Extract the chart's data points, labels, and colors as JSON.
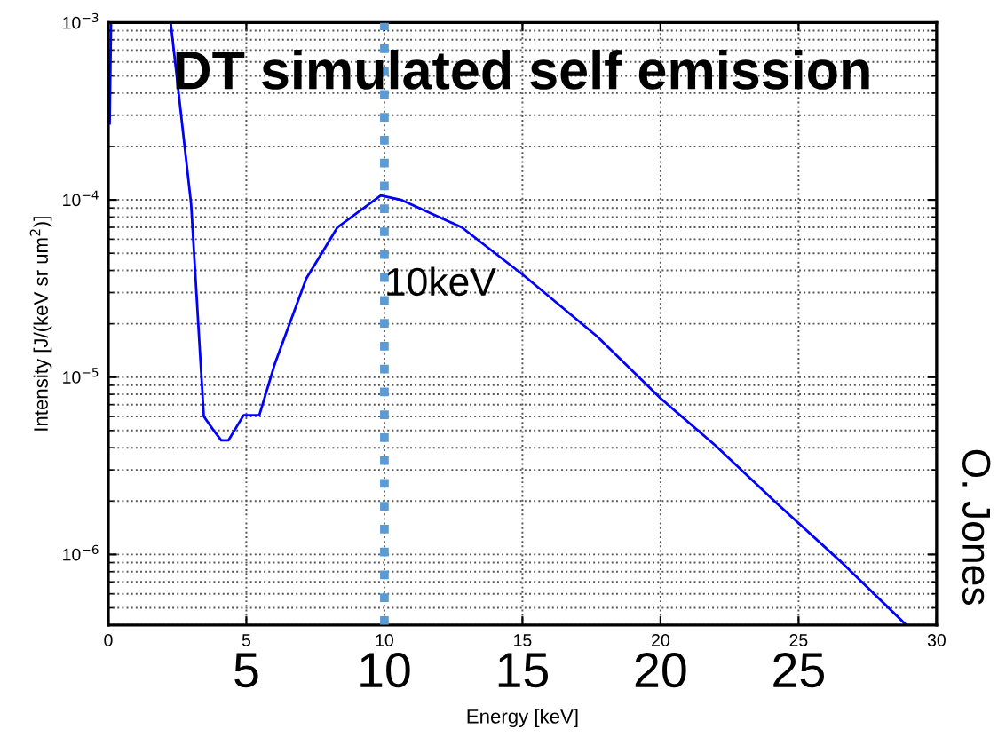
{
  "chart_data": {
    "type": "line",
    "title": "DT simulated self emission",
    "xlabel": "Energy [keV]",
    "ylabel": "Intensity [J/(keV sr um$^{2}$)]",
    "x": [
      0.05,
      0.1,
      1.0,
      2.26,
      3.0,
      3.46,
      3.78,
      4.09,
      4.35,
      4.9,
      5.47,
      6.04,
      7.17,
      8.3,
      9.87,
      10.6,
      12.8,
      15.0,
      17.7,
      20.0,
      22.0,
      24.2,
      26.5,
      28.9
    ],
    "series": [
      {
        "color": "#0000ff",
        "values": [
          0.00027,
          0.001,
          null,
          0.001,
          9.5e-05,
          6e-06,
          5.1e-06,
          4.4e-06,
          4.4e-06,
          6.1e-06,
          6.1e-06,
          1.2e-05,
          3.6e-05,
          7e-05,
          0.000106,
          0.0001,
          7e-05,
          3.8e-05,
          1.7e-05,
          7.6e-06,
          4.1e-06,
          1.95e-06,
          9.2e-07,
          4e-07
        ]
      }
    ],
    "log": "y",
    "xlim": [
      0,
      30
    ],
    "ylim": [
      4e-07,
      0.001
    ],
    "xticks": [
      0,
      5,
      10,
      15,
      20,
      25,
      30
    ],
    "yticks": [
      {
        "value": 1e-06,
        "label": "10$^{−6}$"
      },
      {
        "value": 1e-05,
        "label": "10$^{−5}$"
      },
      {
        "value": 0.0001,
        "label": "10$^{−4}$"
      },
      {
        "value": 0.001,
        "label": "10$^{−3}$"
      }
    ],
    "grid": true,
    "line_style": "solid",
    "marker": "none",
    "ref_lines": [
      {
        "axis": "x",
        "value": 10,
        "label": "10keV",
        "color": "#5b9bd5",
        "line_style": "dotted"
      }
    ],
    "annotations": [
      "5",
      "10",
      "15",
      "20",
      "25",
      "O. Jones"
    ]
  }
}
